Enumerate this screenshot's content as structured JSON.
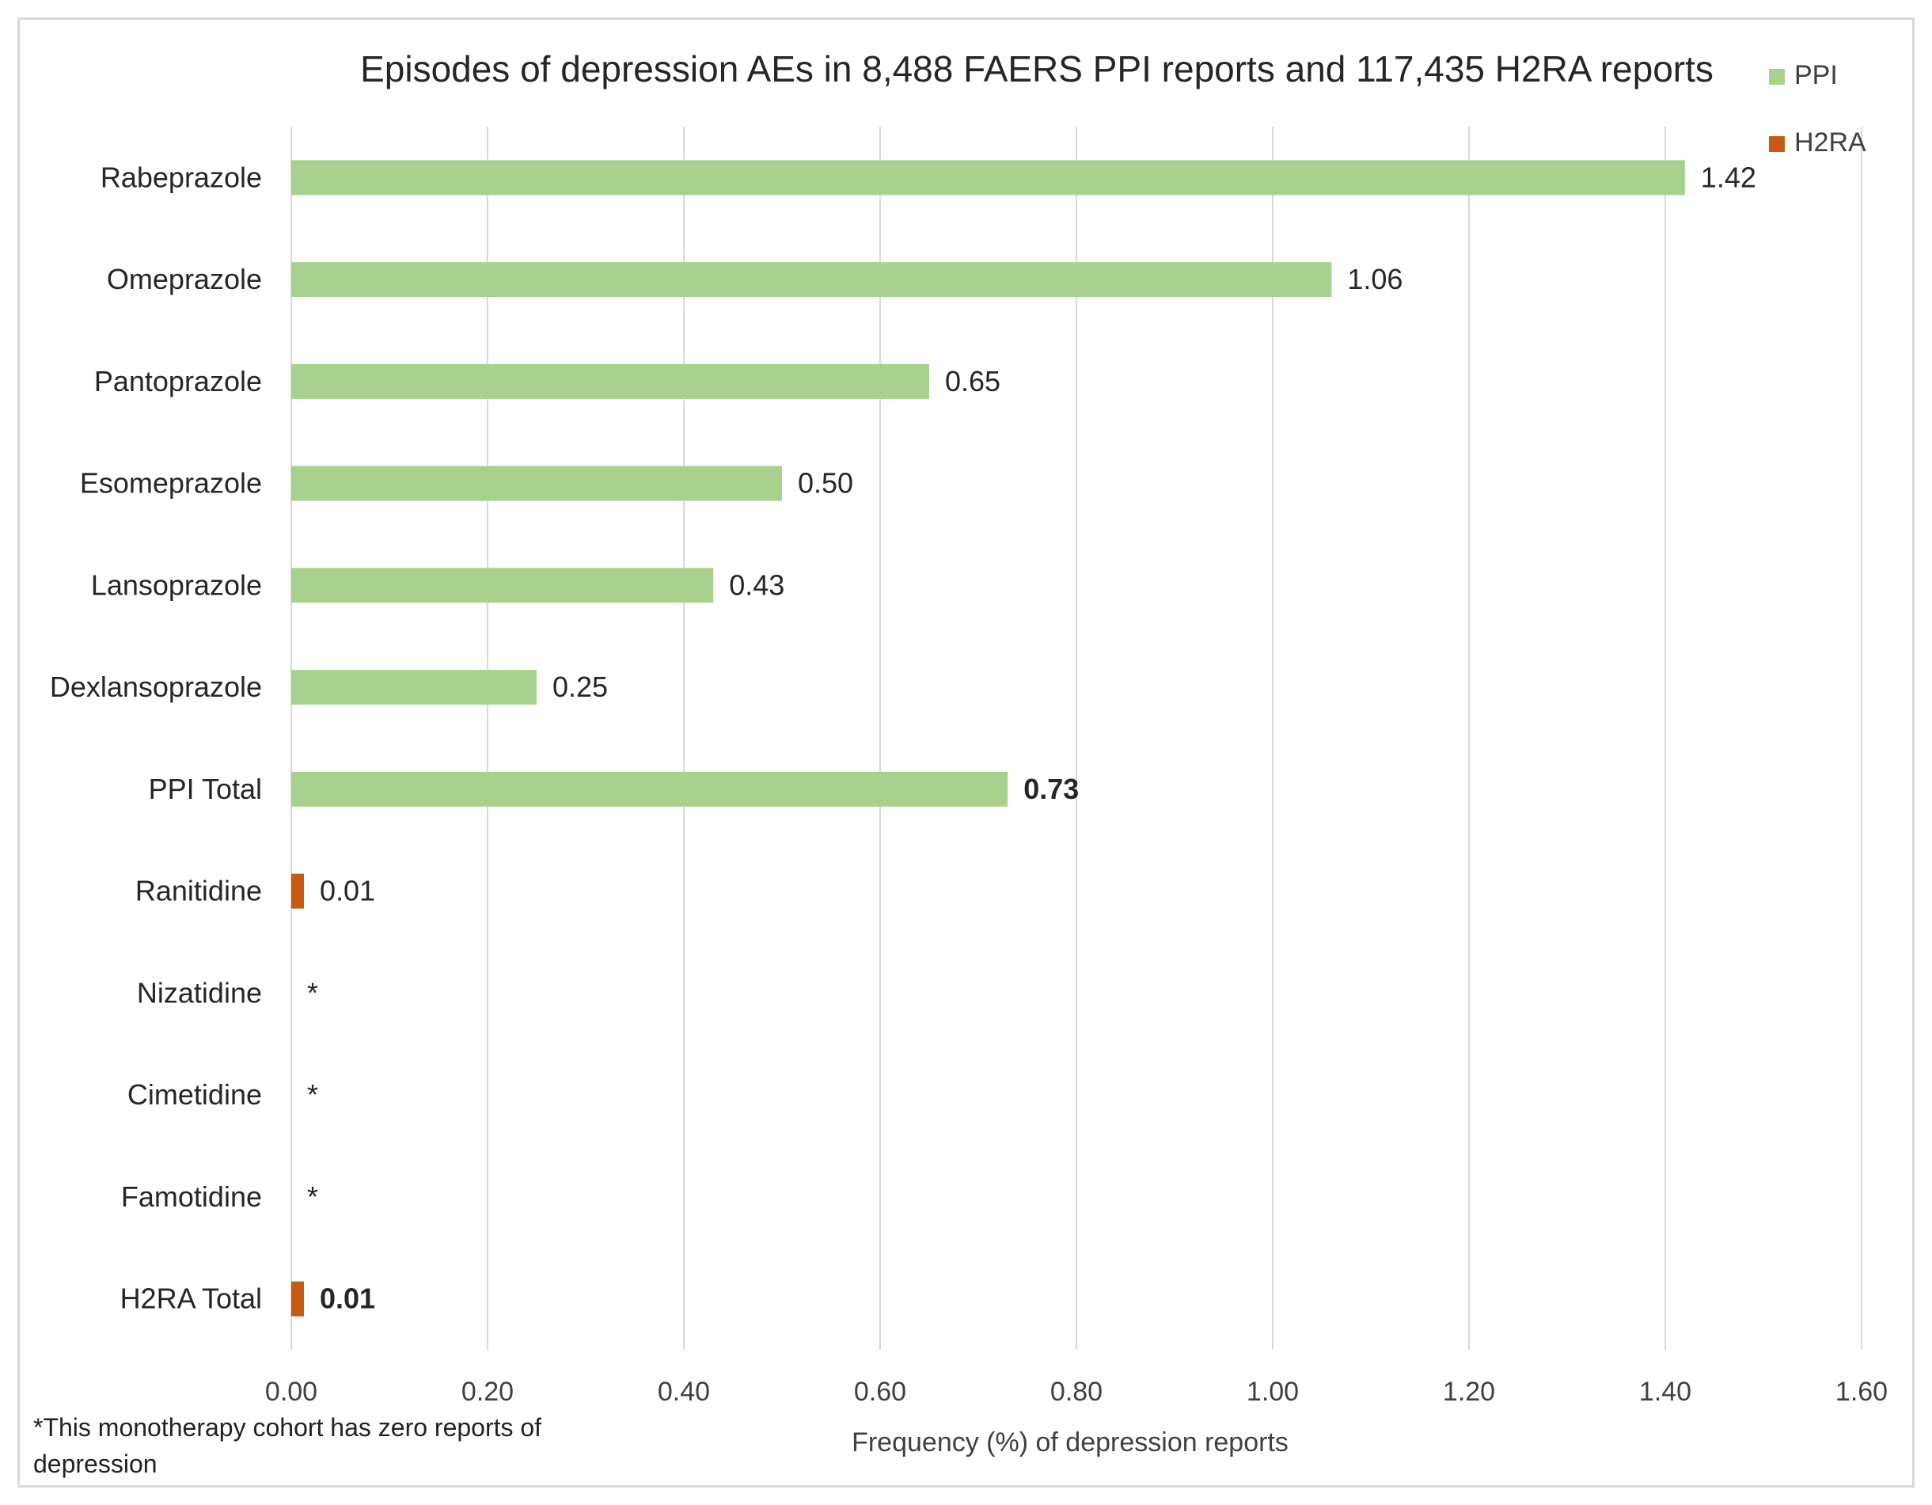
{
  "chart_data": {
    "type": "bar",
    "orientation": "horizontal",
    "title": "Episodes of depression AEs in 8,488 FAERS PPI reports and 117,435 H2RA reports",
    "xlabel": "Frequency (%) of depression reports",
    "ylabel": "",
    "xlim": [
      0,
      1.6
    ],
    "xticks": [
      "0.00",
      "0.20",
      "0.40",
      "0.60",
      "0.80",
      "1.00",
      "1.20",
      "1.40",
      "1.60"
    ],
    "grid": true,
    "legend_position": "top-right",
    "series": [
      {
        "name": "PPI",
        "color": "#a9d18e"
      },
      {
        "name": "H2RA",
        "color": "#c55a11"
      }
    ],
    "categories": [
      "Rabeprazole",
      "Omeprazole",
      "Pantoprazole",
      "Esomeprazole",
      "Lansoprazole",
      "Dexlansoprazole",
      "PPI Total",
      "Ranitidine",
      "Nizatidine",
      "Cimetidine",
      "Famotidine",
      "H2RA Total"
    ],
    "points": [
      {
        "category": "Rabeprazole",
        "series": "PPI",
        "value": 1.42,
        "label": "1.42",
        "bold": false
      },
      {
        "category": "Omeprazole",
        "series": "PPI",
        "value": 1.06,
        "label": "1.06",
        "bold": false
      },
      {
        "category": "Pantoprazole",
        "series": "PPI",
        "value": 0.65,
        "label": "0.65",
        "bold": false
      },
      {
        "category": "Esomeprazole",
        "series": "PPI",
        "value": 0.5,
        "label": "0.50",
        "bold": false
      },
      {
        "category": "Lansoprazole",
        "series": "PPI",
        "value": 0.43,
        "label": "0.43",
        "bold": false
      },
      {
        "category": "Dexlansoprazole",
        "series": "PPI",
        "value": 0.25,
        "label": "0.25",
        "bold": false
      },
      {
        "category": "PPI Total",
        "series": "PPI",
        "value": 0.73,
        "label": "0.73",
        "bold": true
      },
      {
        "category": "Ranitidine",
        "series": "H2RA",
        "value": 0.01,
        "label": "0.01",
        "bold": false
      },
      {
        "category": "Nizatidine",
        "series": "H2RA",
        "value": 0,
        "label": "*",
        "bold": false
      },
      {
        "category": "Cimetidine",
        "series": "H2RA",
        "value": 0,
        "label": "*",
        "bold": false
      },
      {
        "category": "Famotidine",
        "series": "H2RA",
        "value": 0,
        "label": "*",
        "bold": false
      },
      {
        "category": "H2RA Total",
        "series": "H2RA",
        "value": 0.01,
        "label": "0.01",
        "bold": true
      }
    ],
    "footnote": "*This monotherapy cohort has zero reports of depression"
  }
}
